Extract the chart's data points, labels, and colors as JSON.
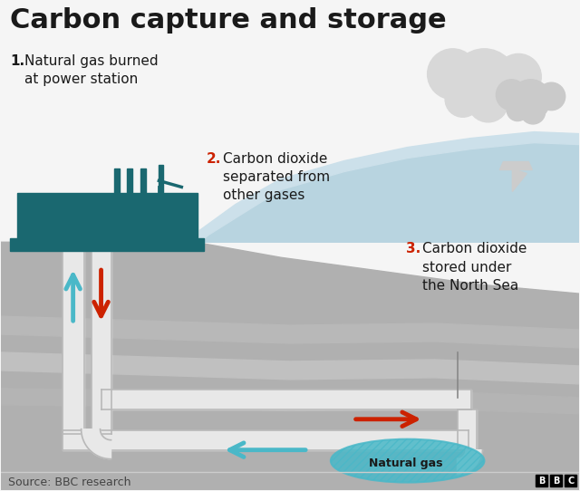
{
  "title": "Carbon capture and storage",
  "title_fontsize": 22,
  "title_fontweight": "bold",
  "bg_color": "#f5f5f5",
  "sea_color": "#b8d4e0",
  "sea_color_light": "#cce0ea",
  "pipe_color": "#e8e8e8",
  "pipe_border": "#b8b8b8",
  "factory_color": "#1a6870",
  "arrow_red": "#cc2200",
  "arrow_teal": "#4ab8c8",
  "label1_bold": "1.",
  "label1_text": "Natural gas burned\nat power station",
  "label2_bold": "2.",
  "label2_text": "Carbon dioxide\nseparated from\nother gases",
  "label3_bold": "3.",
  "label3_text": "Carbon dioxide\nstored under\nthe North Sea",
  "natural_gas_label": "Natural gas",
  "source_text": "Source: BBC research",
  "source_fontsize": 9,
  "cloud_color": "#d8d8d8",
  "sail_color": "#cccccc",
  "natural_gas_fill": "#4ab8c8",
  "natural_gas_hatch": "////",
  "ground_base": "#b0b0b0",
  "ground_layer1": "#bbbbbb",
  "ground_layer2": "#c4c4c4",
  "ground_dark": "#a0a0a0"
}
